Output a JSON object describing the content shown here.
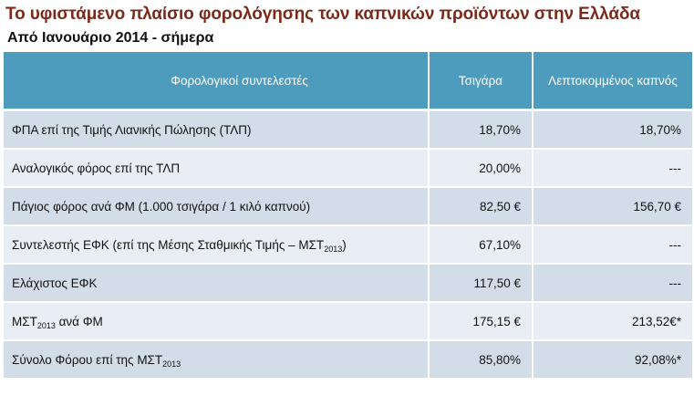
{
  "title": "Το υφιστάμενο πλαίσιο φορολόγησης των καπνικών προϊόντων στην Ελλάδα",
  "subtitle": "Από Ιανουάριο 2014 - σήμερα",
  "table": {
    "headers": [
      "Φορολογικοί συντελεστές",
      "Τσιγάρα",
      "Λεπτοκομμένος καπνός"
    ],
    "rows": [
      {
        "label": "ΦΠΑ επί της Τιμής Λιανικής Πώλησης  (ΤΛΠ)",
        "label_sub": "",
        "label_after": "",
        "cigarettes": "18,70%",
        "fine_cut": "18,70%"
      },
      {
        "label": "Αναλογικός φόρος επί της ΤΛΠ",
        "label_sub": "",
        "label_after": "",
        "cigarettes": "20,00%",
        "fine_cut": "---"
      },
      {
        "label": "Πάγιος φόρος ανά ΦΜ (1.000 τσιγάρα / 1 κιλό καπνού)",
        "label_sub": "",
        "label_after": "",
        "cigarettes": "82,50 €",
        "fine_cut": "156,70 €"
      },
      {
        "label": "Συντελεστής ΕΦΚ (επί της Μέσης Σταθμικής Τιμής – ΜΣΤ",
        "label_sub": "2013",
        "label_after": ")",
        "cigarettes": "67,10%",
        "fine_cut": "---"
      },
      {
        "label": "Ελάχιστος ΕΦΚ",
        "label_sub": "",
        "label_after": "",
        "cigarettes": "117,50 €",
        "fine_cut": "---"
      },
      {
        "label": "ΜΣΤ",
        "label_sub": "2013",
        "label_after": " ανά ΦΜ",
        "cigarettes": "175,15 €",
        "fine_cut": "213,52€*"
      },
      {
        "label": "Σύνολο Φόρου επί της ΜΣΤ",
        "label_sub": "2013",
        "label_after": "",
        "cigarettes": "85,80%",
        "fine_cut": "92,08%*"
      }
    ]
  },
  "colors": {
    "title": "#7b2a1a",
    "header_bg": "#4d9bbd",
    "row_odd": "#d2dde9",
    "row_even": "#e9eef4"
  }
}
